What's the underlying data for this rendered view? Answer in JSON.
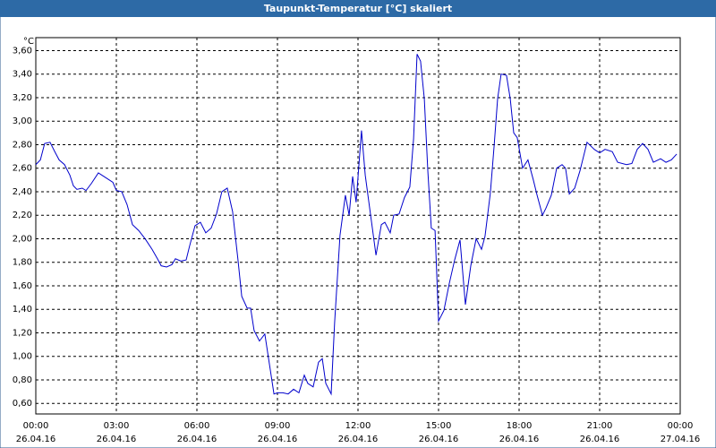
{
  "chart_data": {
    "type": "line",
    "title": "Taupunkt-Temperatur [°C] skaliert",
    "y_unit": "°C",
    "color": "#0000cc",
    "grid": true,
    "xlim": [
      0,
      24
    ],
    "ylim": [
      0.51,
      3.71
    ],
    "xticks": [
      {
        "value": 0,
        "label": "00:00"
      },
      {
        "value": 3,
        "label": "03:00"
      },
      {
        "value": 6,
        "label": "06:00"
      },
      {
        "value": 9,
        "label": "09:00"
      },
      {
        "value": 12,
        "label": "12:00"
      },
      {
        "value": 15,
        "label": "15:00"
      },
      {
        "value": 18,
        "label": "18:00"
      },
      {
        "value": 21,
        "label": "21:00"
      },
      {
        "value": 24,
        "label": "00:00"
      }
    ],
    "xtick_dates": [
      "26.04.16",
      "26.04.16",
      "26.04.16",
      "26.04.16",
      "26.04.16",
      "26.04.16",
      "26.04.16",
      "26.04.16",
      "27.04.16"
    ],
    "yticks": [
      {
        "value": 0.6,
        "label": "0,60"
      },
      {
        "value": 0.8,
        "label": "0,80"
      },
      {
        "value": 1.0,
        "label": "1,00"
      },
      {
        "value": 1.2,
        "label": "1,20"
      },
      {
        "value": 1.4,
        "label": "1,40"
      },
      {
        "value": 1.6,
        "label": "1,60"
      },
      {
        "value": 1.8,
        "label": "1,80"
      },
      {
        "value": 2.0,
        "label": "2,00"
      },
      {
        "value": 2.2,
        "label": "2,20"
      },
      {
        "value": 2.4,
        "label": "2,40"
      },
      {
        "value": 2.6,
        "label": "2,60"
      },
      {
        "value": 2.8,
        "label": "2,80"
      },
      {
        "value": 3.0,
        "label": "3,00"
      },
      {
        "value": 3.2,
        "label": "3,20"
      },
      {
        "value": 3.4,
        "label": "3,40"
      },
      {
        "value": 3.6,
        "label": "3,60"
      }
    ],
    "x": [
      0,
      0.17,
      0.33,
      0.53,
      0.73,
      0.87,
      1.07,
      1.27,
      1.4,
      1.53,
      1.73,
      1.87,
      2.07,
      2.33,
      2.6,
      2.87,
      3,
      3.2,
      3.4,
      3.6,
      3.83,
      4.07,
      4.33,
      4.53,
      4.67,
      4.87,
      5.07,
      5.2,
      5.4,
      5.6,
      5.73,
      5.93,
      6.13,
      6.33,
      6.53,
      6.73,
      6.93,
      7.13,
      7.33,
      7.53,
      7.67,
      7.87,
      8,
      8.13,
      8.33,
      8.53,
      8.67,
      8.87,
      9,
      9.2,
      9.4,
      9.6,
      9.8,
      10,
      10.13,
      10.33,
      10.53,
      10.67,
      10.8,
      11,
      11.13,
      11.33,
      11.53,
      11.67,
      11.8,
      11.93,
      12.13,
      12.27,
      12.47,
      12.67,
      12.87,
      13,
      13.2,
      13.33,
      13.53,
      13.73,
      13.93,
      14.07,
      14.2,
      14.33,
      14.47,
      14.6,
      14.73,
      14.87,
      15,
      15.2,
      15.4,
      15.6,
      15.8,
      16,
      16.2,
      16.4,
      16.6,
      16.73,
      16.93,
      17.07,
      17.2,
      17.33,
      17.53,
      17.67,
      17.8,
      17.93,
      18.13,
      18.33,
      18.53,
      18.67,
      18.87,
      19,
      19.2,
      19.4,
      19.6,
      19.73,
      19.87,
      20.07,
      20.27,
      20.53,
      20.8,
      21,
      21.2,
      21.47,
      21.67,
      22,
      22.2,
      22.4,
      22.6,
      22.8,
      23,
      23.27,
      23.47,
      23.67,
      23.87
    ],
    "values": [
      2.63,
      2.67,
      2.81,
      2.82,
      2.73,
      2.67,
      2.63,
      2.54,
      2.45,
      2.42,
      2.43,
      2.41,
      2.47,
      2.56,
      2.52,
      2.48,
      2.41,
      2.4,
      2.29,
      2.12,
      2.07,
      2.0,
      1.91,
      1.83,
      1.77,
      1.76,
      1.78,
      1.83,
      1.81,
      1.82,
      1.94,
      2.11,
      2.14,
      2.05,
      2.09,
      2.21,
      2.4,
      2.43,
      2.23,
      1.82,
      1.51,
      1.41,
      1.41,
      1.22,
      1.13,
      1.19,
      0.98,
      0.68,
      0.69,
      0.69,
      0.68,
      0.72,
      0.69,
      0.84,
      0.77,
      0.74,
      0.95,
      0.98,
      0.77,
      0.68,
      1.29,
      2.03,
      2.37,
      2.2,
      2.53,
      2.31,
      2.92,
      2.54,
      2.2,
      1.86,
      2.12,
      2.14,
      2.05,
      2.2,
      2.21,
      2.35,
      2.44,
      2.85,
      3.57,
      3.51,
      3.19,
      2.58,
      2.09,
      2.07,
      1.3,
      1.39,
      1.62,
      1.82,
      1.99,
      1.44,
      1.77,
      2.0,
      1.91,
      2.02,
      2.39,
      2.79,
      3.19,
      3.4,
      3.39,
      3.19,
      2.9,
      2.86,
      2.6,
      2.67,
      2.5,
      2.37,
      2.2,
      2.26,
      2.37,
      2.6,
      2.63,
      2.6,
      2.38,
      2.43,
      2.58,
      2.82,
      2.76,
      2.73,
      2.76,
      2.74,
      2.65,
      2.63,
      2.64,
      2.76,
      2.81,
      2.76,
      2.65,
      2.68,
      2.65,
      2.67,
      2.72
    ]
  }
}
